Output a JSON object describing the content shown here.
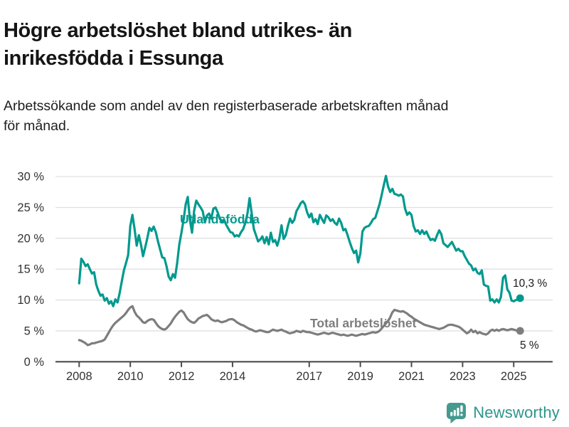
{
  "header": {
    "title": "Högre arbetslöshet bland utrikes- än inrikesfödda i Essunga",
    "subtitle": "Arbetssökande som andel av den registerbaserade arbetskraften månad för månad."
  },
  "chart_data": {
    "type": "line",
    "frequency": "monthly",
    "x_start": "2008-01",
    "x_end": "2025-04",
    "unit": "%",
    "grid": true,
    "legend_position": "inline-labels",
    "y_axis": {
      "min": 0,
      "max": 30,
      "ticks": [
        {
          "v": 0,
          "label": "0 %"
        },
        {
          "v": 5,
          "label": "5 %"
        },
        {
          "v": 10,
          "label": "10 %"
        },
        {
          "v": 15,
          "label": "15 %"
        },
        {
          "v": 20,
          "label": "20 %"
        },
        {
          "v": 25,
          "label": "25 %"
        },
        {
          "v": 30,
          "label": "30 %"
        }
      ]
    },
    "x_axis": {
      "ticks": [
        {
          "v": 2008,
          "label": "2008"
        },
        {
          "v": 2010,
          "label": "2010"
        },
        {
          "v": 2012,
          "label": "2012"
        },
        {
          "v": 2014,
          "label": "2014"
        },
        {
          "v": 2017,
          "label": "2017"
        },
        {
          "v": 2019,
          "label": "2019"
        },
        {
          "v": 2021,
          "label": "2021"
        },
        {
          "v": 2023,
          "label": "2023"
        },
        {
          "v": 2025,
          "label": "2025"
        }
      ]
    },
    "series": [
      {
        "name": "Utlandsfödda",
        "inline_label": "Utlandsfödda",
        "end_label": "10,3 %",
        "color": "#00998e",
        "values": [
          12.7,
          16.7,
          16.2,
          15.5,
          15.8,
          15.0,
          14.3,
          14.5,
          12.5,
          11.5,
          10.7,
          10.9,
          9.9,
          10.3,
          9.4,
          9.8,
          9.0,
          10.1,
          9.6,
          11.1,
          13.0,
          14.8,
          16.0,
          17.3,
          22.0,
          23.8,
          21.5,
          18.8,
          20.5,
          19.0,
          17.1,
          18.5,
          20.0,
          21.7,
          21.2,
          21.9,
          21.0,
          19.5,
          18.2,
          16.9,
          16.8,
          15.5,
          13.8,
          13.2,
          14.2,
          13.6,
          16.0,
          19.0,
          20.9,
          23.0,
          25.5,
          26.7,
          23.0,
          20.9,
          24.5,
          26.1,
          25.5,
          25.0,
          24.4,
          22.6,
          23.7,
          24.0,
          23.2,
          24.8,
          25.0,
          24.2,
          23.2,
          22.6,
          23.0,
          22.2,
          21.6,
          21.0,
          20.9,
          20.3,
          20.5,
          20.3,
          21.0,
          21.5,
          22.5,
          24.0,
          26.5,
          24.0,
          21.5,
          20.5,
          19.5,
          19.8,
          20.3,
          19.2,
          20.2,
          19.0,
          20.9,
          19.4,
          19.7,
          18.8,
          20.0,
          22.1,
          19.9,
          20.5,
          22.0,
          23.2,
          22.5,
          23.0,
          24.4,
          25.0,
          25.7,
          26.0,
          25.5,
          24.2,
          23.4,
          24.0,
          22.6,
          23.1,
          22.3,
          23.8,
          23.1,
          22.5,
          23.7,
          23.4,
          22.8,
          23.1,
          22.5,
          22.2,
          23.2,
          22.5,
          21.3,
          21.5,
          20.5,
          19.4,
          18.4,
          17.6,
          18.0,
          16.1,
          17.5,
          21.1,
          21.7,
          21.9,
          22.0,
          22.5,
          23.1,
          23.3,
          24.4,
          25.5,
          27.0,
          28.6,
          30.1,
          28.4,
          27.5,
          28.0,
          27.2,
          27.1,
          26.9,
          27.1,
          26.8,
          24.8,
          23.8,
          24.2,
          23.8,
          22.0,
          21.1,
          21.3,
          20.7,
          21.3,
          20.7,
          21.1,
          20.3,
          19.7,
          19.9,
          19.6,
          20.5,
          21.3,
          20.7,
          19.2,
          18.9,
          18.6,
          19.0,
          19.4,
          18.7,
          18.0,
          18.3,
          17.9,
          17.9,
          17.1,
          16.5,
          15.9,
          15.6,
          14.8,
          15.1,
          14.4,
          14.2,
          14.8,
          12.5,
          12.3,
          12.2,
          9.9,
          10.1,
          9.6,
          10.1,
          9.6,
          10.5,
          13.6,
          14.0,
          11.7,
          11.2,
          9.9,
          9.8,
          10.0,
          10.1,
          10.3
        ]
      },
      {
        "name": "Total arbetslöshet",
        "inline_label": "Total arbetslöshet",
        "end_label": "5 %",
        "color": "#7d7d7d",
        "values": [
          3.5,
          3.4,
          3.2,
          3.0,
          2.7,
          2.8,
          3.0,
          3.0,
          3.1,
          3.2,
          3.3,
          3.4,
          3.6,
          4.2,
          4.8,
          5.4,
          5.9,
          6.3,
          6.6,
          6.9,
          7.2,
          7.5,
          7.9,
          8.4,
          8.8,
          9.0,
          8.1,
          7.5,
          7.2,
          6.8,
          6.4,
          6.3,
          6.6,
          6.8,
          6.9,
          6.8,
          6.3,
          5.8,
          5.5,
          5.3,
          5.2,
          5.4,
          5.8,
          6.2,
          6.8,
          7.3,
          7.7,
          8.1,
          8.3,
          8.0,
          7.4,
          6.9,
          6.6,
          6.4,
          6.3,
          6.6,
          7.0,
          7.2,
          7.4,
          7.5,
          7.6,
          7.3,
          6.9,
          6.7,
          6.6,
          6.7,
          6.5,
          6.4,
          6.5,
          6.6,
          6.8,
          6.9,
          6.9,
          6.7,
          6.4,
          6.2,
          6.0,
          5.9,
          5.7,
          5.5,
          5.3,
          5.2,
          5.0,
          4.9,
          5.0,
          5.1,
          5.0,
          4.9,
          4.8,
          4.8,
          5.0,
          5.2,
          5.1,
          5.0,
          5.1,
          5.2,
          5.0,
          4.9,
          4.7,
          4.6,
          4.7,
          4.8,
          5.0,
          4.9,
          4.8,
          5.0,
          4.9,
          4.8,
          4.8,
          4.7,
          4.6,
          4.5,
          4.4,
          4.5,
          4.6,
          4.7,
          4.6,
          4.5,
          4.6,
          4.7,
          4.6,
          4.5,
          4.4,
          4.3,
          4.4,
          4.3,
          4.2,
          4.3,
          4.4,
          4.3,
          4.2,
          4.3,
          4.4,
          4.5,
          4.4,
          4.5,
          4.6,
          4.7,
          4.8,
          4.7,
          4.8,
          5.0,
          5.4,
          5.8,
          6.2,
          6.6,
          7.2,
          8.0,
          8.4,
          8.3,
          8.2,
          8.1,
          8.2,
          8.0,
          7.8,
          7.5,
          7.3,
          7.0,
          6.8,
          6.6,
          6.4,
          6.2,
          6.0,
          5.9,
          5.8,
          5.7,
          5.6,
          5.5,
          5.4,
          5.3,
          5.4,
          5.5,
          5.7,
          5.9,
          6.0,
          6.0,
          5.9,
          5.8,
          5.7,
          5.5,
          5.2,
          4.9,
          4.6,
          4.8,
          5.2,
          4.8,
          5.0,
          4.6,
          4.8,
          4.6,
          4.5,
          4.4,
          4.6,
          5.0,
          5.2,
          5.0,
          5.2,
          5.0,
          5.2,
          5.3,
          5.2,
          5.1,
          5.2,
          5.3,
          5.2,
          5.1,
          5.0,
          5.0
        ]
      }
    ]
  },
  "footer": {
    "brand": "Newsworthy"
  }
}
